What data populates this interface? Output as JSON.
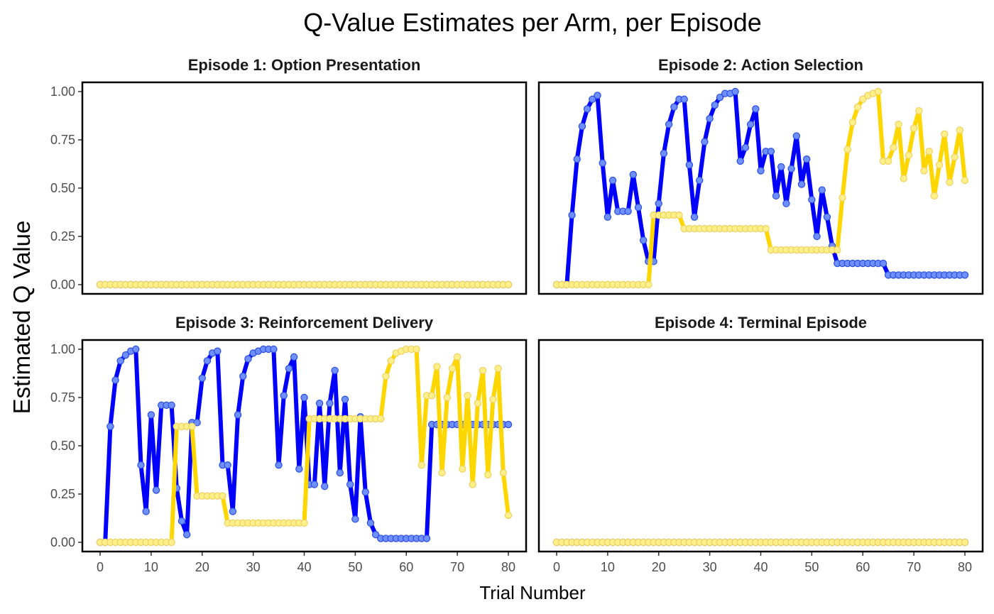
{
  "chart_data": {
    "type": "line",
    "title": "Q-Value Estimates per Arm, per Episode",
    "xlabel": "Trial Number",
    "ylabel": "Estimated Q Value",
    "xlim": [
      0,
      80
    ],
    "ylim": [
      0,
      1
    ],
    "x_ticks": [
      0,
      10,
      20,
      30,
      40,
      50,
      60,
      70,
      80
    ],
    "y_ticks": [
      "0.00",
      "0.25",
      "0.50",
      "0.75",
      "1.00"
    ],
    "grid": false,
    "legend": "none",
    "series_colors": {
      "blue": {
        "line": "#0000ff",
        "point_fill": "#6f8fff",
        "point_stroke": "#2a4fe0"
      },
      "gold": {
        "line": "#ffd700",
        "point_fill": "#fff08a",
        "point_stroke": "#f0d060"
      }
    },
    "panels": [
      {
        "title": "Episode 1: Option Presentation",
        "blue": [
          0,
          0,
          0,
          0,
          0,
          0,
          0,
          0,
          0,
          0,
          0,
          0,
          0,
          0,
          0,
          0,
          0,
          0,
          0,
          0,
          0,
          0,
          0,
          0,
          0,
          0,
          0,
          0,
          0,
          0,
          0,
          0,
          0,
          0,
          0,
          0,
          0,
          0,
          0,
          0,
          0,
          0,
          0,
          0,
          0,
          0,
          0,
          0,
          0,
          0,
          0,
          0,
          0,
          0,
          0,
          0,
          0,
          0,
          0,
          0,
          0,
          0,
          0,
          0,
          0,
          0,
          0,
          0,
          0,
          0,
          0,
          0,
          0,
          0,
          0,
          0,
          0,
          0,
          0,
          0,
          0
        ],
        "gold": [
          0,
          0,
          0,
          0,
          0,
          0,
          0,
          0,
          0,
          0,
          0,
          0,
          0,
          0,
          0,
          0,
          0,
          0,
          0,
          0,
          0,
          0,
          0,
          0,
          0,
          0,
          0,
          0,
          0,
          0,
          0,
          0,
          0,
          0,
          0,
          0,
          0,
          0,
          0,
          0,
          0,
          0,
          0,
          0,
          0,
          0,
          0,
          0,
          0,
          0,
          0,
          0,
          0,
          0,
          0,
          0,
          0,
          0,
          0,
          0,
          0,
          0,
          0,
          0,
          0,
          0,
          0,
          0,
          0,
          0,
          0,
          0,
          0,
          0,
          0,
          0,
          0,
          0,
          0,
          0,
          0
        ]
      },
      {
        "title": "Episode 2: Action Selection",
        "blue": [
          0,
          0,
          0,
          0.36,
          0.65,
          0.82,
          0.91,
          0.96,
          0.98,
          0.63,
          0.35,
          0.54,
          0.38,
          0.38,
          0.38,
          0.57,
          0.4,
          0.23,
          0.12,
          0.12,
          0.42,
          0.68,
          0.83,
          0.92,
          0.96,
          0.96,
          0.62,
          0.35,
          0.54,
          0.74,
          0.86,
          0.93,
          0.97,
          0.99,
          0.99,
          1.0,
          0.64,
          0.71,
          0.83,
          0.91,
          0.59,
          0.69,
          0.69,
          0.46,
          0.61,
          0.42,
          0.6,
          0.77,
          0.52,
          0.65,
          0.44,
          0.25,
          0.49,
          0.35,
          0.2,
          0.11,
          0.11,
          0.11,
          0.11,
          0.11,
          0.11,
          0.11,
          0.11,
          0.11,
          0.11,
          0.05,
          0.05,
          0.05,
          0.05,
          0.05,
          0.05,
          0.05,
          0.05,
          0.05,
          0.05,
          0.05,
          0.05,
          0.05,
          0.05,
          0.05,
          0.05
        ],
        "gold": [
          0,
          0,
          0,
          0,
          0,
          0,
          0,
          0,
          0,
          0,
          0,
          0,
          0,
          0,
          0,
          0,
          0,
          0,
          0,
          0.36,
          0.36,
          0.36,
          0.36,
          0.36,
          0.36,
          0.29,
          0.29,
          0.29,
          0.29,
          0.29,
          0.29,
          0.29,
          0.29,
          0.29,
          0.29,
          0.29,
          0.29,
          0.29,
          0.29,
          0.29,
          0.29,
          0.29,
          0.18,
          0.18,
          0.18,
          0.18,
          0.18,
          0.18,
          0.18,
          0.18,
          0.18,
          0.18,
          0.18,
          0.18,
          0.18,
          0.18,
          0.45,
          0.7,
          0.84,
          0.92,
          0.96,
          0.98,
          0.99,
          1.0,
          0.64,
          0.64,
          0.71,
          0.83,
          0.55,
          0.67,
          0.81,
          0.9,
          0.59,
          0.69,
          0.46,
          0.62,
          0.78,
          0.53,
          0.66,
          0.8,
          0.54
        ]
      },
      {
        "title": "Episode 3: Reinforcement Delivery",
        "blue": [
          0,
          0,
          0.6,
          0.84,
          0.94,
          0.97,
          0.99,
          1.0,
          0.4,
          0.16,
          0.66,
          0.27,
          0.71,
          0.71,
          0.71,
          0.28,
          0.11,
          0.04,
          0.62,
          0.62,
          0.85,
          0.94,
          0.98,
          0.99,
          0.4,
          0.4,
          0.16,
          0.66,
          0.86,
          0.95,
          0.98,
          0.99,
          1.0,
          1.0,
          1.0,
          0.4,
          0.76,
          0.9,
          0.96,
          0.38,
          0.75,
          0.3,
          0.3,
          0.72,
          0.29,
          0.72,
          0.89,
          0.36,
          0.74,
          0.3,
          0.12,
          0.65,
          0.26,
          0.1,
          0.04,
          0.02,
          0.02,
          0.02,
          0.02,
          0.02,
          0.02,
          0.02,
          0.02,
          0.02,
          0.02,
          0.61,
          0.61,
          0.61,
          0.61,
          0.61,
          0.61,
          0.61,
          0.61,
          0.61,
          0.61,
          0.61,
          0.61,
          0.61,
          0.61,
          0.61,
          0.61
        ],
        "gold": [
          0,
          0,
          0,
          0,
          0,
          0,
          0,
          0,
          0,
          0,
          0,
          0,
          0,
          0,
          0,
          0.6,
          0.6,
          0.6,
          0.6,
          0.24,
          0.24,
          0.24,
          0.24,
          0.24,
          0.24,
          0.1,
          0.1,
          0.1,
          0.1,
          0.1,
          0.1,
          0.1,
          0.1,
          0.1,
          0.1,
          0.1,
          0.1,
          0.1,
          0.1,
          0.1,
          0.1,
          0.64,
          0.64,
          0.64,
          0.64,
          0.64,
          0.64,
          0.64,
          0.64,
          0.64,
          0.64,
          0.64,
          0.64,
          0.64,
          0.64,
          0.64,
          0.86,
          0.94,
          0.98,
          0.99,
          1.0,
          1.0,
          1.0,
          0.4,
          0.76,
          0.76,
          0.91,
          0.36,
          0.75,
          0.9,
          0.96,
          0.38,
          0.76,
          0.3,
          0.72,
          0.89,
          0.35,
          0.74,
          0.9,
          0.36,
          0.14
        ]
      },
      {
        "title": "Episode 4: Terminal Episode",
        "blue": [
          0,
          0,
          0,
          0,
          0,
          0,
          0,
          0,
          0,
          0,
          0,
          0,
          0,
          0,
          0,
          0,
          0,
          0,
          0,
          0,
          0,
          0,
          0,
          0,
          0,
          0,
          0,
          0,
          0,
          0,
          0,
          0,
          0,
          0,
          0,
          0,
          0,
          0,
          0,
          0,
          0,
          0,
          0,
          0,
          0,
          0,
          0,
          0,
          0,
          0,
          0,
          0,
          0,
          0,
          0,
          0,
          0,
          0,
          0,
          0,
          0,
          0,
          0,
          0,
          0,
          0,
          0,
          0,
          0,
          0,
          0,
          0,
          0,
          0,
          0,
          0,
          0,
          0,
          0,
          0,
          0
        ],
        "gold": [
          0,
          0,
          0,
          0,
          0,
          0,
          0,
          0,
          0,
          0,
          0,
          0,
          0,
          0,
          0,
          0,
          0,
          0,
          0,
          0,
          0,
          0,
          0,
          0,
          0,
          0,
          0,
          0,
          0,
          0,
          0,
          0,
          0,
          0,
          0,
          0,
          0,
          0,
          0,
          0,
          0,
          0,
          0,
          0,
          0,
          0,
          0,
          0,
          0,
          0,
          0,
          0,
          0,
          0,
          0,
          0,
          0,
          0,
          0,
          0,
          0,
          0,
          0,
          0,
          0,
          0,
          0,
          0,
          0,
          0,
          0,
          0,
          0,
          0,
          0,
          0,
          0,
          0,
          0,
          0,
          0
        ]
      }
    ]
  }
}
